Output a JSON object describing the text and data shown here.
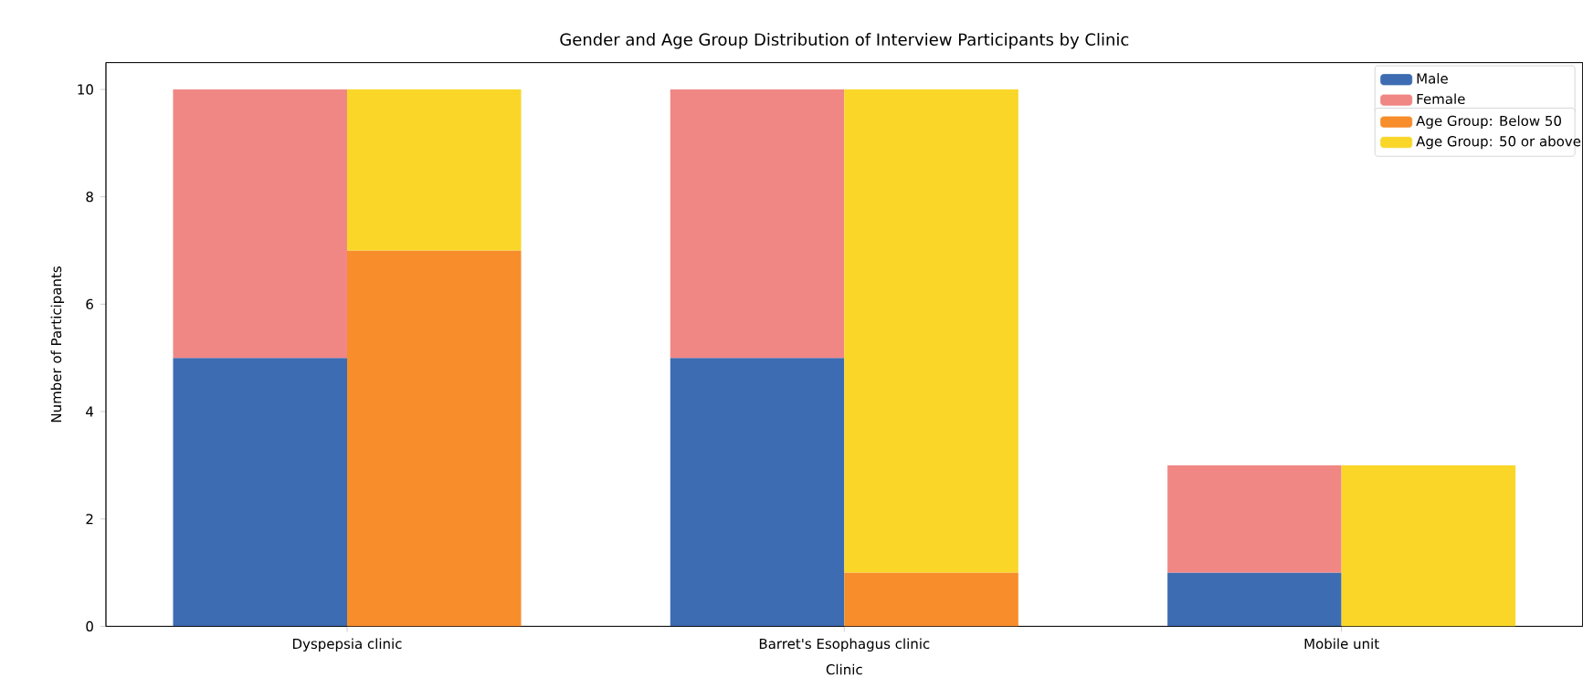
{
  "chart_data": [
    {
      "type": "bar",
      "title": "Gender and Age Group Distribution of Interview Participants by Clinic",
      "xlabel": "Clinic",
      "ylabel": "Number of Participants",
      "categories": [
        "Dyspepsia clinic",
        "Barret's Esophagus clinic",
        "Mobile unit"
      ],
      "stacked": true,
      "series": [
        {
          "name": "Male",
          "color": "#3d6cb2",
          "values": [
            5,
            5,
            1
          ]
        },
        {
          "name": "Female",
          "color": "#f08784",
          "values": [
            5,
            5,
            2
          ]
        }
      ],
      "ylim": [
        0,
        10.5
      ],
      "yticks": [
        0,
        2,
        4,
        6,
        8,
        10
      ],
      "legend": "top right"
    },
    {
      "type": "bar",
      "categories": [
        null,
        null,
        null
      ],
      "stacked": true,
      "series": [
        {
          "name": "Age Group: Below 50",
          "color": "#f78d2b",
          "values": [
            7,
            1,
            0
          ]
        },
        {
          "name": "Age Group: 50 or above",
          "color": "#f9d628",
          "values": [
            3,
            9,
            3
          ]
        }
      ],
      "ylim": [
        0,
        10.5
      ],
      "legend": "top right"
    }
  ]
}
